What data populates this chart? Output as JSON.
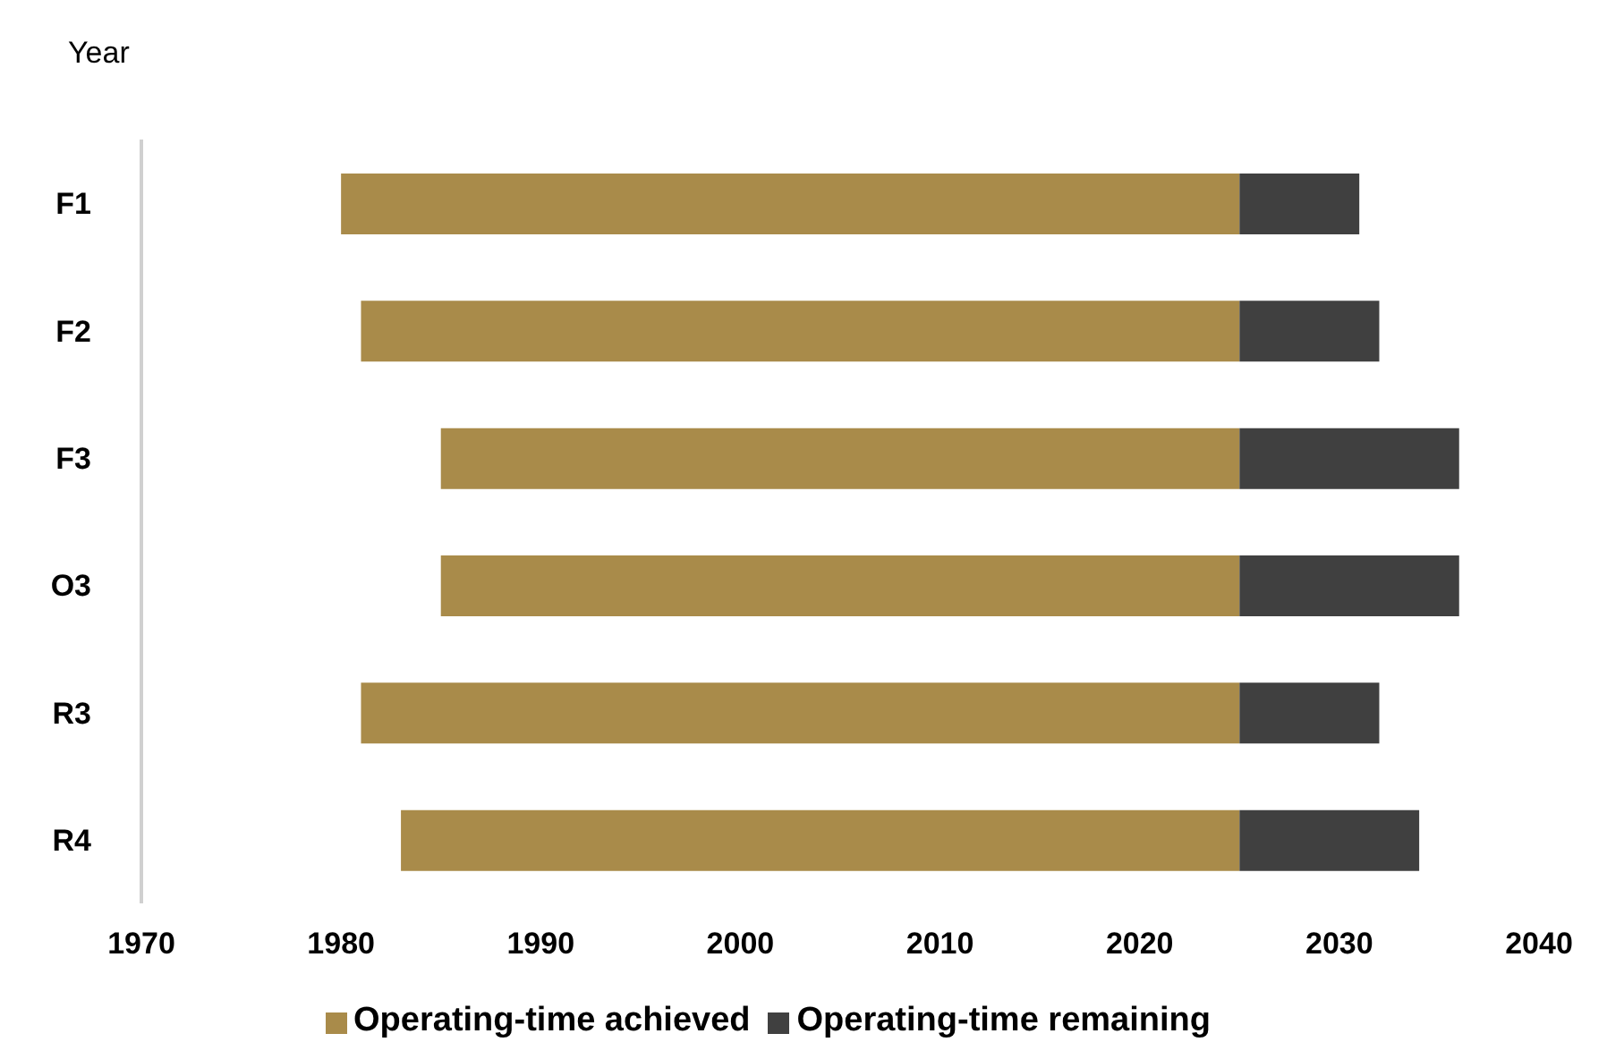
{
  "chart_data": {
    "type": "bar",
    "orientation": "horizontal",
    "xlabel": "Year",
    "categories": [
      "F1",
      "F2",
      "F3",
      "O3",
      "R3",
      "R4"
    ],
    "series": [
      {
        "name": "Operating-time achieved",
        "color": "#a98b4a",
        "base": [
          1980,
          1981,
          1985,
          1985,
          1981,
          1983
        ],
        "values": [
          45,
          44,
          40,
          40,
          44,
          42
        ]
      },
      {
        "name": "Operating-time remaining",
        "color": "#404040",
        "base": [
          2025,
          2025,
          2025,
          2025,
          2025,
          2025
        ],
        "values": [
          6,
          7,
          11,
          11,
          7,
          9
        ]
      }
    ],
    "xlim": [
      1970,
      2040
    ],
    "xticks": [
      1970,
      1980,
      1990,
      2000,
      2010,
      2020,
      2030,
      2040
    ],
    "legend": "bottom"
  }
}
